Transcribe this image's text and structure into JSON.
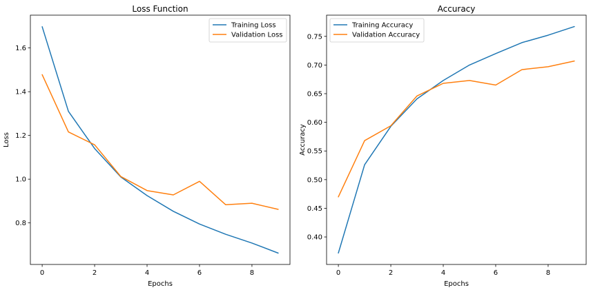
{
  "chart_data": [
    {
      "type": "line",
      "title": "Loss Function",
      "xlabel": "Epochs",
      "ylabel": "Loss",
      "xlim": [
        -0.45,
        9.45
      ],
      "ylim": [
        0.61,
        1.75
      ],
      "x": [
        0,
        1,
        2,
        3,
        4,
        5,
        6,
        7,
        8,
        9
      ],
      "xticks": [
        0,
        2,
        4,
        6,
        8
      ],
      "yticks": [
        0.8,
        1.0,
        1.2,
        1.4,
        1.6
      ],
      "xtick_labels": [
        "0",
        "2",
        "4",
        "6",
        "8"
      ],
      "ytick_labels": [
        "0.8",
        "1.0",
        "1.2",
        "1.4",
        "1.6"
      ],
      "legend": "top-right",
      "grid": false,
      "series": [
        {
          "name": "Training Loss",
          "color": "#1f77b4",
          "values": [
            1.697,
            1.31,
            1.14,
            1.01,
            0.925,
            0.853,
            0.795,
            0.748,
            0.708,
            0.662
          ]
        },
        {
          "name": "Validation Loss",
          "color": "#ff7f0e",
          "values": [
            1.478,
            1.216,
            1.157,
            1.012,
            0.948,
            0.928,
            0.99,
            0.883,
            0.89,
            0.862
          ]
        }
      ]
    },
    {
      "type": "line",
      "title": "Accuracy",
      "xlabel": "Epochs",
      "ylabel": "Accuracy",
      "xlim": [
        -0.45,
        9.45
      ],
      "ylim": [
        0.352,
        0.787
      ],
      "x": [
        0,
        1,
        2,
        3,
        4,
        5,
        6,
        7,
        8,
        9
      ],
      "xticks": [
        0,
        2,
        4,
        6,
        8
      ],
      "yticks": [
        0.4,
        0.45,
        0.5,
        0.55,
        0.6,
        0.65,
        0.7,
        0.75
      ],
      "xtick_labels": [
        "0",
        "2",
        "4",
        "6",
        "8"
      ],
      "ytick_labels": [
        "0.40",
        "0.45",
        "0.50",
        "0.55",
        "0.60",
        "0.65",
        "0.70",
        "0.75"
      ],
      "legend": "top-left",
      "grid": false,
      "series": [
        {
          "name": "Training Accuracy",
          "color": "#1f77b4",
          "values": [
            0.372,
            0.526,
            0.593,
            0.641,
            0.673,
            0.7,
            0.72,
            0.739,
            0.752,
            0.767
          ]
        },
        {
          "name": "Validation Accuracy",
          "color": "#ff7f0e",
          "values": [
            0.47,
            0.568,
            0.594,
            0.646,
            0.668,
            0.673,
            0.665,
            0.692,
            0.697,
            0.707
          ]
        }
      ]
    }
  ]
}
